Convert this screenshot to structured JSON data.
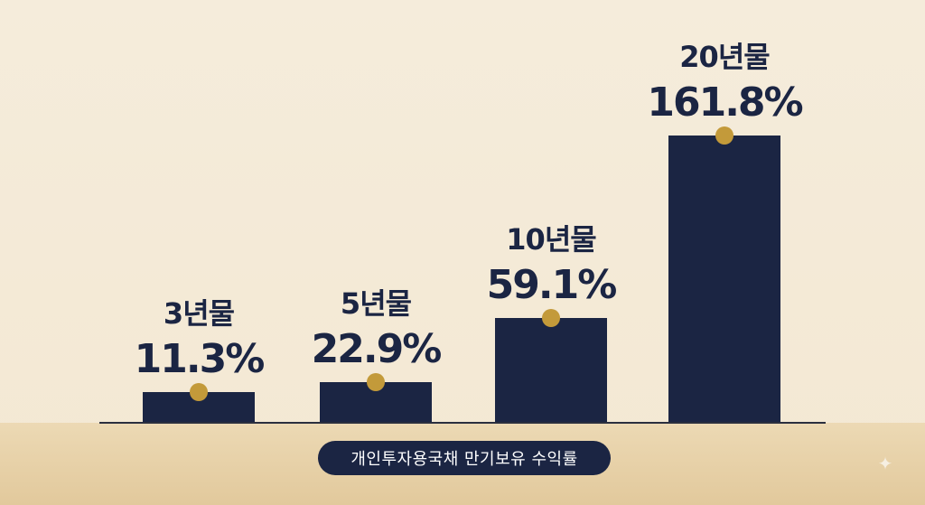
{
  "chart_data": {
    "type": "bar",
    "categories": [
      "3년물",
      "5년물",
      "10년물",
      "20년물"
    ],
    "values": [
      11.3,
      22.9,
      59.1,
      161.8
    ],
    "value_labels": [
      "11.3%",
      "22.9%",
      "59.1%",
      "161.8%"
    ],
    "title": "",
    "xlabel": "개인투자용국채 만기보유 수익률",
    "ylabel": "",
    "ylim": [
      0,
      161.8
    ],
    "grid": false,
    "legend": "none",
    "colors": {
      "bar": "#1b2543",
      "marker": "#c39a3a",
      "background": "#f5ecdb",
      "floor": "#e6cfa6"
    }
  },
  "icons": {
    "corner": "sparkle-icon"
  }
}
